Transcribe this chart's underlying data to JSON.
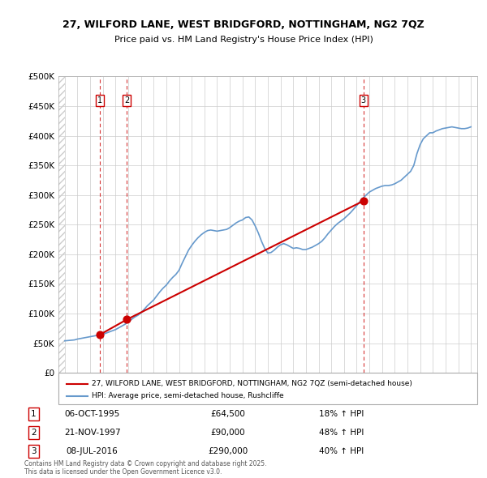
{
  "title1": "27, WILFORD LANE, WEST BRIDGFORD, NOTTINGHAM, NG2 7QZ",
  "title2": "Price paid vs. HM Land Registry's House Price Index (HPI)",
  "property_label": "27, WILFORD LANE, WEST BRIDGFORD, NOTTINGHAM, NG2 7QZ (semi-detached house)",
  "hpi_label": "HPI: Average price, semi-detached house, Rushcliffe",
  "property_color": "#cc0000",
  "hpi_color": "#6699cc",
  "bg_hatch_color": "#dddddd",
  "transactions": [
    {
      "num": 1,
      "date": "06-OCT-1995",
      "price": 64500,
      "year": 1995.77,
      "pct": "18%",
      "dir": "↑"
    },
    {
      "num": 2,
      "date": "21-NOV-1997",
      "price": 90000,
      "year": 1997.89,
      "pct": "48%",
      "dir": "↑"
    },
    {
      "num": 3,
      "date": "08-JUL-2016",
      "price": 290000,
      "year": 2016.52,
      "pct": "40%",
      "dir": "↑"
    }
  ],
  "ylim": [
    0,
    500000
  ],
  "yticks": [
    0,
    50000,
    100000,
    150000,
    200000,
    250000,
    300000,
    350000,
    400000,
    450000,
    500000
  ],
  "ytick_labels": [
    "£0",
    "£50K",
    "£100K",
    "£150K",
    "£200K",
    "£250K",
    "£300K",
    "£350K",
    "£400K",
    "£450K",
    "£500K"
  ],
  "xlim_start": 1992.5,
  "xlim_end": 2025.5,
  "footer": "Contains HM Land Registry data © Crown copyright and database right 2025.\nThis data is licensed under the Open Government Licence v3.0.",
  "hpi_data_x": [
    1993.0,
    1993.25,
    1993.5,
    1993.75,
    1994.0,
    1994.25,
    1994.5,
    1994.75,
    1995.0,
    1995.25,
    1995.5,
    1995.75,
    1996.0,
    1996.25,
    1996.5,
    1996.75,
    1997.0,
    1997.25,
    1997.5,
    1997.75,
    1998.0,
    1998.25,
    1998.5,
    1998.75,
    1999.0,
    1999.25,
    1999.5,
    1999.75,
    2000.0,
    2000.25,
    2000.5,
    2000.75,
    2001.0,
    2001.25,
    2001.5,
    2001.75,
    2002.0,
    2002.25,
    2002.5,
    2002.75,
    2003.0,
    2003.25,
    2003.5,
    2003.75,
    2004.0,
    2004.25,
    2004.5,
    2004.75,
    2005.0,
    2005.25,
    2005.5,
    2005.75,
    2006.0,
    2006.25,
    2006.5,
    2006.75,
    2007.0,
    2007.25,
    2007.5,
    2007.75,
    2008.0,
    2008.25,
    2008.5,
    2008.75,
    2009.0,
    2009.25,
    2009.5,
    2009.75,
    2010.0,
    2010.25,
    2010.5,
    2010.75,
    2011.0,
    2011.25,
    2011.5,
    2011.75,
    2012.0,
    2012.25,
    2012.5,
    2012.75,
    2013.0,
    2013.25,
    2013.5,
    2013.75,
    2014.0,
    2014.25,
    2014.5,
    2014.75,
    2015.0,
    2015.25,
    2015.5,
    2015.75,
    2016.0,
    2016.25,
    2016.5,
    2016.75,
    2017.0,
    2017.25,
    2017.5,
    2017.75,
    2018.0,
    2018.25,
    2018.5,
    2018.75,
    2019.0,
    2019.25,
    2019.5,
    2019.75,
    2020.0,
    2020.25,
    2020.5,
    2020.75,
    2021.0,
    2021.25,
    2021.5,
    2021.75,
    2022.0,
    2022.25,
    2022.5,
    2022.75,
    2023.0,
    2023.25,
    2023.5,
    2023.75,
    2024.0,
    2024.25,
    2024.5,
    2024.75,
    2025.0
  ],
  "hpi_data_y": [
    54000,
    54500,
    55000,
    55500,
    57000,
    58000,
    59000,
    60000,
    61000,
    62000,
    63000,
    64000,
    65000,
    67000,
    69000,
    71000,
    73000,
    76000,
    79000,
    82000,
    86000,
    90000,
    94000,
    97000,
    101000,
    107000,
    113000,
    118000,
    123000,
    130000,
    137000,
    143000,
    148000,
    155000,
    161000,
    166000,
    173000,
    185000,
    196000,
    207000,
    215000,
    222000,
    228000,
    233000,
    237000,
    240000,
    241000,
    240000,
    239000,
    240000,
    241000,
    242000,
    245000,
    249000,
    253000,
    256000,
    258000,
    262000,
    263000,
    258000,
    248000,
    236000,
    222000,
    210000,
    202000,
    203000,
    207000,
    212000,
    216000,
    218000,
    216000,
    213000,
    210000,
    211000,
    210000,
    208000,
    208000,
    210000,
    212000,
    215000,
    218000,
    222000,
    228000,
    235000,
    241000,
    247000,
    252000,
    256000,
    260000,
    265000,
    270000,
    276000,
    282000,
    289000,
    295000,
    300000,
    305000,
    308000,
    311000,
    313000,
    315000,
    316000,
    316000,
    317000,
    319000,
    322000,
    325000,
    330000,
    335000,
    340000,
    350000,
    370000,
    385000,
    395000,
    400000,
    405000,
    405000,
    408000,
    410000,
    412000,
    413000,
    414000,
    415000,
    414000,
    413000,
    412000,
    412000,
    413000,
    415000
  ],
  "property_data_x": [
    1995.77,
    1997.89,
    2016.52
  ],
  "property_data_y": [
    64500,
    90000,
    290000
  ]
}
